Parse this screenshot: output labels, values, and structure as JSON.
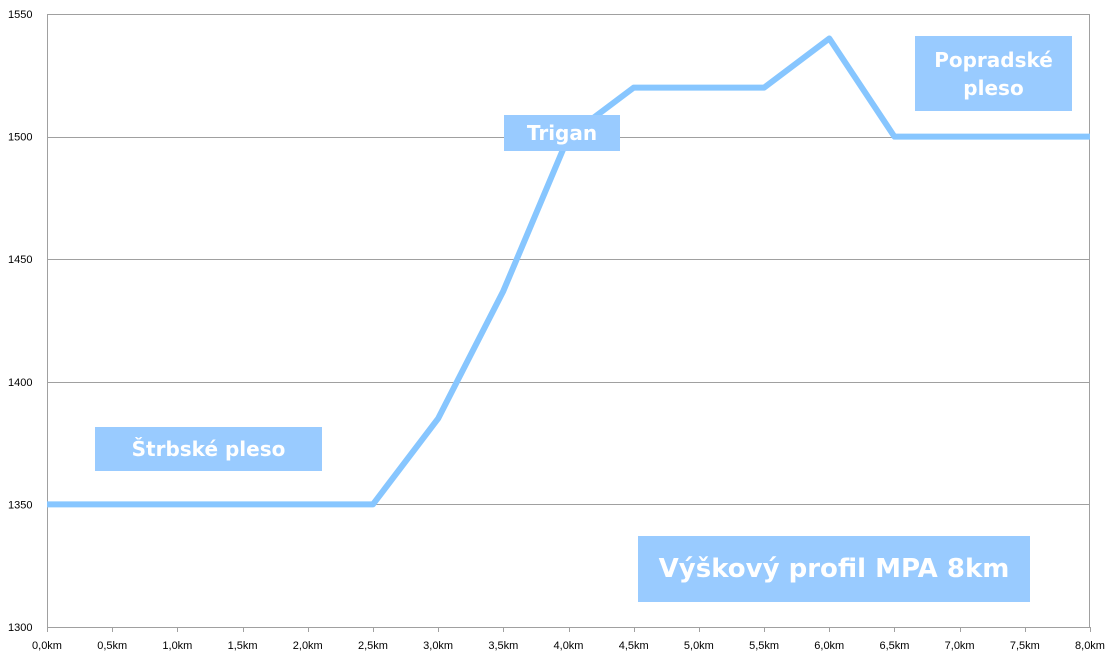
{
  "chart_data": {
    "type": "line",
    "title": "Výškový profil MPA 8km",
    "xlabel": "",
    "ylabel": "",
    "x_ticks": [
      "0,0km",
      "0,5km",
      "1,0km",
      "1,5km",
      "2,0km",
      "2,5km",
      "3,0km",
      "3,5km",
      "4,0km",
      "4,5km",
      "5,0km",
      "5,5km",
      "6,0km",
      "6,5km",
      "7,0km",
      "7,5km",
      "8,0km"
    ],
    "y_ticks": [
      "1300",
      "1350",
      "1400",
      "1450",
      "1500",
      "1550"
    ],
    "ylim": [
      1300,
      1550
    ],
    "xlim": [
      0,
      8
    ],
    "grid": "horizontal",
    "legend": "none",
    "color": "#87c6ff",
    "series": [
      {
        "x": [
          0,
          0.5,
          1.0,
          1.5,
          2.0,
          2.5,
          3.0,
          3.5,
          4.0,
          4.5,
          5.0,
          5.5,
          6.0,
          6.5,
          7.0,
          7.5,
          8.0
        ],
        "values": [
          1350,
          1350,
          1350,
          1350,
          1350,
          1350,
          1385,
          1437,
          1500,
          1520,
          1520,
          1520,
          1540,
          1500,
          1500,
          1500,
          1500
        ]
      }
    ],
    "annotations": [
      {
        "id": "strbske",
        "text": "Štrbské pleso"
      },
      {
        "id": "trigan",
        "text": "Trigan"
      },
      {
        "id": "popradske",
        "text": "Popradské pleso"
      }
    ]
  }
}
